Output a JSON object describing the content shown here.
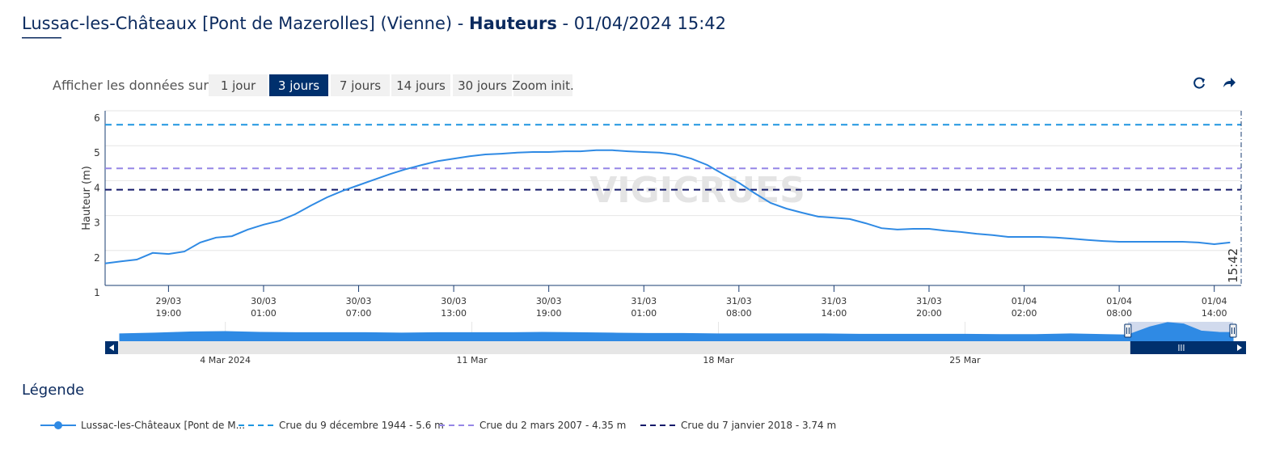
{
  "header": {
    "title_prefix": "Lussac-les-Châteaux [Pont de Mazerolles] (Vienne) - ",
    "title_bold": "Hauteurs",
    "title_suffix": " - 01/04/2024 15:42"
  },
  "controls": {
    "label": "Afficher les données sur :",
    "buttons": [
      "1 jour",
      "3 jours",
      "7 jours",
      "14 jours",
      "30 jours",
      "Zoom init."
    ],
    "active": 1
  },
  "legend_title": "Légende",
  "chart_data": {
    "type": "line",
    "y_label": "Hauteur (m)",
    "watermark": "VIGICRUES",
    "x": [
      "29/03 15:00",
      "29/03 16:00",
      "29/03 17:00",
      "29/03 18:00",
      "29/03 19:00",
      "29/03 20:00",
      "29/03 21:00",
      "29/03 22:00",
      "29/03 23:00",
      "30/03 00:00",
      "30/03 01:00",
      "30/03 02:00",
      "30/03 03:00",
      "30/03 04:00",
      "30/03 05:00",
      "30/03 06:00",
      "30/03 07:00",
      "30/03 08:00",
      "30/03 09:00",
      "30/03 10:00",
      "30/03 11:00",
      "30/03 12:00",
      "30/03 13:00",
      "30/03 14:00",
      "30/03 15:00",
      "30/03 16:00",
      "30/03 17:00",
      "30/03 18:00",
      "30/03 19:00",
      "30/03 20:00",
      "30/03 21:00",
      "30/03 22:00",
      "30/03 23:00",
      "31/03 00:00",
      "31/03 01:00",
      "31/03 03:00",
      "31/03 04:00",
      "31/03 05:00",
      "31/03 06:00",
      "31/03 07:00",
      "31/03 08:00",
      "31/03 09:00",
      "31/03 10:00",
      "31/03 11:00",
      "31/03 12:00",
      "31/03 13:00",
      "31/03 14:00",
      "31/03 15:00",
      "31/03 16:00",
      "31/03 17:00",
      "31/03 18:00",
      "31/03 19:00",
      "31/03 20:00",
      "31/03 21:00",
      "31/03 22:00",
      "31/03 23:00",
      "01/04 00:00",
      "01/04 01:00",
      "01/04 02:00",
      "01/04 03:00",
      "01/04 04:00",
      "01/04 05:00",
      "01/04 06:00",
      "01/04 07:00",
      "01/04 08:00",
      "01/04 09:00",
      "01/04 10:00",
      "01/04 11:00",
      "01/04 12:00",
      "01/04 13:00",
      "01/04 14:00",
      "01/04 15:00"
    ],
    "series": [
      {
        "name": "Lussac-les-Châteaux [Pont de M...",
        "color": "#2f8ae4",
        "values": [
          1.63,
          1.69,
          1.74,
          1.93,
          1.9,
          1.97,
          2.23,
          2.37,
          2.41,
          2.6,
          2.74,
          2.85,
          3.04,
          3.29,
          3.52,
          3.71,
          3.87,
          4.03,
          4.19,
          4.33,
          4.45,
          4.56,
          4.63,
          4.7,
          4.75,
          4.77,
          4.8,
          4.82,
          4.82,
          4.84,
          4.84,
          4.87,
          4.87,
          4.84,
          4.82,
          4.8,
          4.75,
          4.63,
          4.45,
          4.19,
          3.94,
          3.64,
          3.36,
          3.2,
          3.08,
          2.97,
          2.94,
          2.9,
          2.78,
          2.64,
          2.6,
          2.62,
          2.62,
          2.57,
          2.53,
          2.48,
          2.44,
          2.39,
          2.39,
          2.39,
          2.37,
          2.34,
          2.3,
          2.27,
          2.25,
          2.25,
          2.25,
          2.25,
          2.25,
          2.23,
          2.18,
          2.23
        ]
      }
    ],
    "thresholds": [
      {
        "name": "Crue du 9 décembre 1944 - 5.6 m",
        "value": 5.6,
        "color": "#1e96e0"
      },
      {
        "name": "Crue du 2 mars 2007 - 4.35 m",
        "value": 4.35,
        "color": "#9586e6"
      },
      {
        "name": "Crue du 7 janvier 2018 - 3.74 m",
        "value": 3.74,
        "color": "#151a6a"
      }
    ],
    "xlim": [
      "29/03 15:00",
      "01/04 15:42"
    ],
    "xticks": [
      "29/03 19:00",
      "30/03 01:00",
      "30/03 07:00",
      "30/03 13:00",
      "30/03 19:00",
      "31/03 01:00",
      "31/03 08:00",
      "31/03 14:00",
      "31/03 20:00",
      "01/04 02:00",
      "01/04 08:00",
      "01/04 14:00"
    ],
    "ylim": [
      1,
      6
    ],
    "yticks": [
      1,
      2,
      3,
      4,
      5,
      6
    ],
    "grid": true,
    "annotations": [
      {
        "x": "01/04 15:42",
        "label": "15:42"
      }
    ],
    "navigator": {
      "type": "area",
      "color": "#2f8ae4",
      "x": [
        "01/03 00:00",
        "02/03 00:00",
        "03/03 00:00",
        "04/03 00:00",
        "05/03 00:00",
        "06/03 00:00",
        "07/03 00:00",
        "08/03 00:00",
        "09/03 00:00",
        "10/03 00:00",
        "11/03 00:00",
        "12/03 00:00",
        "13/03 00:00",
        "14/03 00:00",
        "15/03 00:00",
        "16/03 00:00",
        "17/03 00:00",
        "18/03 00:00",
        "19/03 00:00",
        "20/03 00:00",
        "21/03 00:00",
        "22/03 00:00",
        "23/03 00:00",
        "24/03 00:00",
        "25/03 00:00",
        "26/03 00:00",
        "27/03 00:00",
        "28/03 00:00",
        "29/03 00:00",
        "29/03 15:00",
        "30/03 06:00",
        "30/03 18:00",
        "31/03 06:00",
        "31/03 18:00",
        "01/04 06:00",
        "01/04 15:42"
      ],
      "values": [
        1.9,
        2.1,
        2.4,
        2.5,
        2.3,
        2.2,
        2.2,
        2.2,
        2.1,
        2.2,
        2.2,
        2.2,
        2.3,
        2.2,
        2.1,
        2.0,
        2.0,
        1.9,
        1.9,
        1.9,
        1.9,
        1.8,
        1.8,
        1.8,
        1.8,
        1.7,
        1.7,
        1.9,
        1.7,
        1.63,
        3.7,
        4.82,
        4.45,
        2.62,
        2.3,
        2.23
      ],
      "ylim": [
        0,
        5
      ],
      "xlim": [
        "01/03 00:00",
        "01/04 15:42"
      ],
      "xticks": [
        {
          "value": "04/03 00:00",
          "label": "4 Mar 2024"
        },
        {
          "value": "11/03 00:00",
          "label": "11 Mar"
        },
        {
          "value": "18/03 00:00",
          "label": "18 Mar"
        },
        {
          "value": "25/03 00:00",
          "label": "25 Mar"
        }
      ]
    }
  }
}
